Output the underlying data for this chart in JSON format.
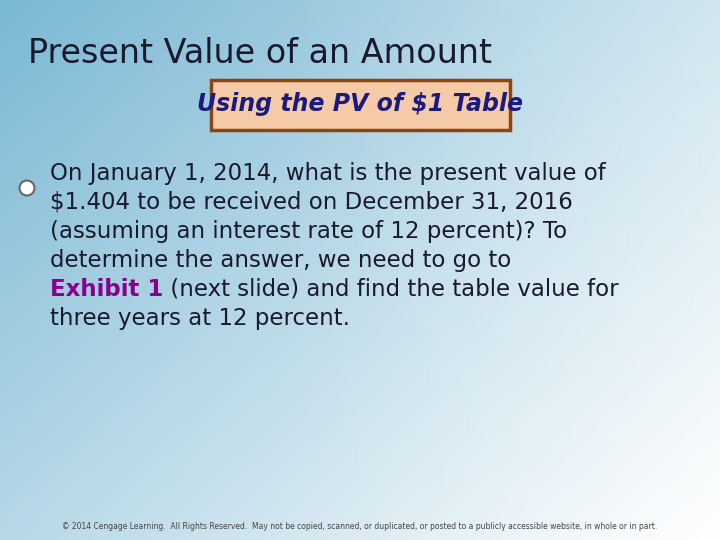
{
  "title": "Present Value of an Amount",
  "subtitle": "Using the PV of $1 Table",
  "footer": "© 2014 Cengage Learning.  All Rights Reserved.  May not be copied, scanned, or duplicated, or posted to a publicly accessible website, in whole or in part.",
  "bg_blue": [
    0.482,
    0.722,
    0.831
  ],
  "bg_white": [
    1.0,
    1.0,
    1.0
  ],
  "title_color": "#1a1a2e",
  "subtitle_box_fill": "#F5CBA7",
  "subtitle_box_edge": "#8B4513",
  "subtitle_color": "#1a1a80",
  "body_color": "#1a1a2e",
  "exhibit_color": "#8B008B",
  "lines": [
    [
      [
        "On January 1, 2014, what is the present value of",
        "#1a1a2e",
        false
      ]
    ],
    [
      [
        "$1.404 to be received on December 31, 2016",
        "#1a1a2e",
        false
      ]
    ],
    [
      [
        "(assuming an interest rate of 12 percent)? To",
        "#1a1a2e",
        false
      ]
    ],
    [
      [
        "determine the answer, we need to go to",
        "#1a1a2e",
        false
      ]
    ],
    [
      [
        "Exhibit 1",
        "#8B008B",
        true
      ],
      [
        " (next slide) and find the table value for",
        "#1a1a2e",
        false
      ]
    ],
    [
      [
        "three years at 12 percent.",
        "#1a1a2e",
        false
      ]
    ]
  ]
}
